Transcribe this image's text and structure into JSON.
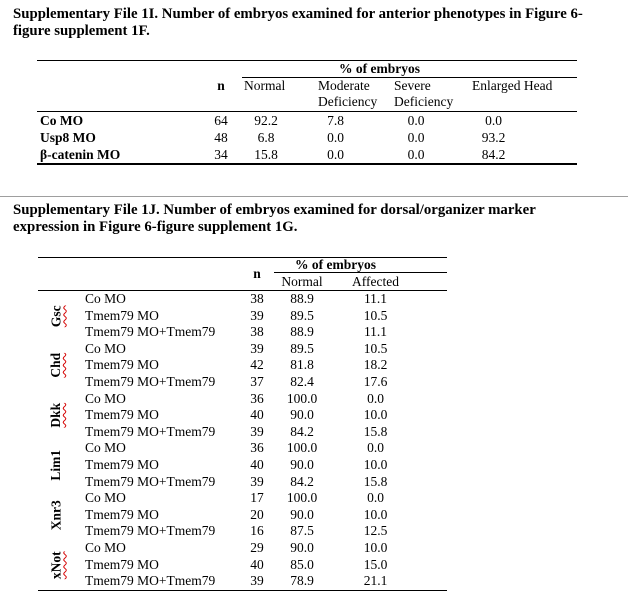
{
  "colors": {
    "background": "#ffffff",
    "text": "#000000",
    "table_border": "#000000",
    "spellcheck_red": "#d40000",
    "section_divider": "#9e9e9e"
  },
  "section1": {
    "title_line1": "Supplementary File 1I. Number of embryos examined for anterior phenotypes in Figure 6-",
    "title_line2": "figure supplement 1F.",
    "table": {
      "group_header": "% of embryos",
      "n_header": "n",
      "columns": [
        "Normal",
        "Moderate Deficiency",
        "Severe Deficiency",
        "Enlarged Head"
      ],
      "rows": [
        {
          "label": "Co MO",
          "n": "64",
          "values": [
            "92.2",
            "7.8",
            "0.0",
            "0.0"
          ]
        },
        {
          "label": "Usp8 MO",
          "n": "48",
          "values": [
            "6.8",
            "0.0",
            "0.0",
            "93.2"
          ]
        },
        {
          "label": "β-catenin MO",
          "n": "34",
          "values": [
            "15.8",
            "0.0",
            "0.0",
            "84.2"
          ]
        }
      ]
    }
  },
  "section2": {
    "title_line1": "Supplementary File 1J. Number of embryos examined for dorsal/organizer marker",
    "title_line2": "expression in Figure 6-figure supplement 1G.",
    "table": {
      "group_header": "% of embryos",
      "n_header": "n",
      "columns": [
        "Normal",
        "Affected"
      ],
      "gene_groups": [
        {
          "gene": "Gsc",
          "spellcheck_underline": true,
          "rows": [
            {
              "label": "Co MO",
              "n": "38",
              "values": [
                "88.9",
                "11.1"
              ]
            },
            {
              "label": "Tmem79 MO",
              "n": "39",
              "values": [
                "89.5",
                "10.5"
              ]
            },
            {
              "label": "Tmem79 MO+Tmem79",
              "n": "38",
              "values": [
                "88.9",
                "11.1"
              ]
            }
          ]
        },
        {
          "gene": "Chd",
          "spellcheck_underline": true,
          "rows": [
            {
              "label": "Co MO",
              "n": "39",
              "values": [
                "89.5",
                "10.5"
              ]
            },
            {
              "label": "Tmem79 MO",
              "n": "42",
              "values": [
                "81.8",
                "18.2"
              ]
            },
            {
              "label": "Tmem79 MO+Tmem79",
              "n": "37",
              "values": [
                "82.4",
                "17.6"
              ]
            }
          ]
        },
        {
          "gene": "Dkk",
          "spellcheck_underline": true,
          "rows": [
            {
              "label": "Co MO",
              "n": "36",
              "values": [
                "100.0",
                "0.0"
              ]
            },
            {
              "label": "Tmem79 MO",
              "n": "40",
              "values": [
                "90.0",
                "10.0"
              ]
            },
            {
              "label": "Tmem79 MO+Tmem79",
              "n": "39",
              "values": [
                "84.2",
                "15.8"
              ]
            }
          ]
        },
        {
          "gene": "Lim1",
          "spellcheck_underline": false,
          "rows": [
            {
              "label": "Co MO",
              "n": "36",
              "values": [
                "100.0",
                "0.0"
              ]
            },
            {
              "label": "Tmem79 MO",
              "n": "40",
              "values": [
                "90.0",
                "10.0"
              ]
            },
            {
              "label": "Tmem79 MO+Tmem79",
              "n": "39",
              "values": [
                "84.2",
                "15.8"
              ]
            }
          ]
        },
        {
          "gene": "Xnr3",
          "spellcheck_underline": false,
          "rows": [
            {
              "label": "Co MO",
              "n": "17",
              "values": [
                "100.0",
                "0.0"
              ]
            },
            {
              "label": "Tmem79 MO",
              "n": "20",
              "values": [
                "90.0",
                "10.0"
              ]
            },
            {
              "label": "Tmem79 MO+Tmem79",
              "n": "16",
              "values": [
                "87.5",
                "12.5"
              ]
            }
          ]
        },
        {
          "gene": "xNot",
          "spellcheck_underline": true,
          "rows": [
            {
              "label": "Co MO",
              "n": "29",
              "values": [
                "90.0",
                "10.0"
              ]
            },
            {
              "label": "Tmem79 MO",
              "n": "40",
              "values": [
                "85.0",
                "15.0"
              ]
            },
            {
              "label": "Tmem79 MO+Tmem79",
              "n": "39",
              "values": [
                "78.9",
                "21.1"
              ]
            }
          ]
        }
      ]
    }
  }
}
